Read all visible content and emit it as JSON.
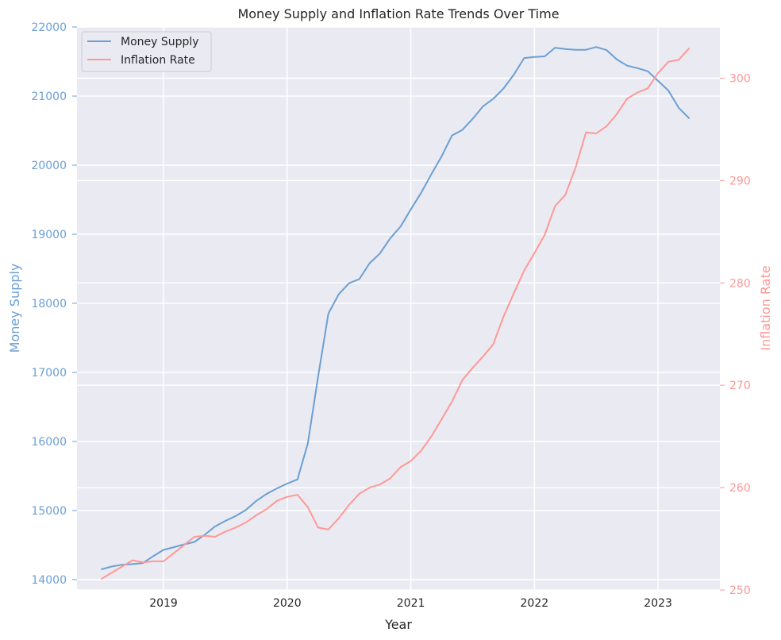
{
  "chart_data": {
    "type": "line",
    "title": "Money Supply and Inflation Rate Trends Over Time",
    "xlabel": "Year",
    "ylabel_left": "Money Supply",
    "ylabel_right": "Inflation Rate",
    "x_ticks": [
      "2019",
      "2020",
      "2021",
      "2022",
      "2023"
    ],
    "y_left_ticks": [
      14000,
      15000,
      16000,
      17000,
      18000,
      19000,
      20000,
      21000,
      22000
    ],
    "y_right_ticks": [
      250,
      260,
      270,
      280,
      290,
      300
    ],
    "xlim": [
      2018.3,
      2023.5
    ],
    "ylim_left": [
      13850,
      22000
    ],
    "ylim_right": [
      250.0,
      305.0
    ],
    "grid": true,
    "legend_position": "top-left",
    "colors": {
      "money_supply": "#6b9fd4",
      "inflation_rate": "#ff9896",
      "plot_background": "#eaeaf2",
      "grid": "#ffffff",
      "text": "#262626"
    },
    "series": [
      {
        "name": "Money Supply",
        "axis": "left",
        "color": "#6b9fd4",
        "points": [
          [
            "2018-07",
            14150
          ],
          [
            "2018-08",
            14190
          ],
          [
            "2018-09",
            14215
          ],
          [
            "2018-10",
            14225
          ],
          [
            "2018-11",
            14240
          ],
          [
            "2018-12",
            14340
          ],
          [
            "2019-01",
            14430
          ],
          [
            "2019-02",
            14470
          ],
          [
            "2019-03",
            14510
          ],
          [
            "2019-04",
            14545
          ],
          [
            "2019-05",
            14650
          ],
          [
            "2019-06",
            14770
          ],
          [
            "2019-07",
            14850
          ],
          [
            "2019-08",
            14920
          ],
          [
            "2019-09",
            15010
          ],
          [
            "2019-10",
            15140
          ],
          [
            "2019-11",
            15240
          ],
          [
            "2019-12",
            15320
          ],
          [
            "2020-01",
            15390
          ],
          [
            "2020-02",
            15450
          ],
          [
            "2020-03",
            15970
          ],
          [
            "2020-04",
            16940
          ],
          [
            "2020-05",
            17850
          ],
          [
            "2020-06",
            18130
          ],
          [
            "2020-07",
            18290
          ],
          [
            "2020-08",
            18350
          ],
          [
            "2020-09",
            18580
          ],
          [
            "2020-10",
            18720
          ],
          [
            "2020-11",
            18940
          ],
          [
            "2020-12",
            19110
          ],
          [
            "2021-01",
            19360
          ],
          [
            "2021-02",
            19600
          ],
          [
            "2021-03",
            19870
          ],
          [
            "2021-04",
            20130
          ],
          [
            "2021-05",
            20430
          ],
          [
            "2021-06",
            20510
          ],
          [
            "2021-07",
            20670
          ],
          [
            "2021-08",
            20850
          ],
          [
            "2021-09",
            20960
          ],
          [
            "2021-10",
            21110
          ],
          [
            "2021-11",
            21310
          ],
          [
            "2021-12",
            21550
          ],
          [
            "2022-01",
            21565
          ],
          [
            "2022-02",
            21575
          ],
          [
            "2022-03",
            21700
          ],
          [
            "2022-04",
            21680
          ],
          [
            "2022-05",
            21670
          ],
          [
            "2022-06",
            21670
          ],
          [
            "2022-07",
            21710
          ],
          [
            "2022-08",
            21665
          ],
          [
            "2022-09",
            21530
          ],
          [
            "2022-10",
            21440
          ],
          [
            "2022-11",
            21405
          ],
          [
            "2022-12",
            21360
          ],
          [
            "2023-01",
            21220
          ],
          [
            "2023-02",
            21080
          ],
          [
            "2023-03",
            20830
          ],
          [
            "2023-04",
            20680
          ]
        ]
      },
      {
        "name": "Inflation Rate",
        "axis": "right",
        "color": "#ff9896",
        "points": [
          [
            "2018-07",
            251.1
          ],
          [
            "2018-08",
            251.7
          ],
          [
            "2018-09",
            252.3
          ],
          [
            "2018-10",
            252.9
          ],
          [
            "2018-11",
            252.7
          ],
          [
            "2018-12",
            252.8
          ],
          [
            "2019-01",
            252.8
          ],
          [
            "2019-02",
            253.6
          ],
          [
            "2019-03",
            254.4
          ],
          [
            "2019-04",
            255.2
          ],
          [
            "2019-05",
            255.3
          ],
          [
            "2019-06",
            255.2
          ],
          [
            "2019-07",
            255.7
          ],
          [
            "2019-08",
            256.1
          ],
          [
            "2019-09",
            256.6
          ],
          [
            "2019-10",
            257.3
          ],
          [
            "2019-11",
            257.9
          ],
          [
            "2019-12",
            258.7
          ],
          [
            "2020-01",
            259.1
          ],
          [
            "2020-02",
            259.3
          ],
          [
            "2020-03",
            258.1
          ],
          [
            "2020-04",
            256.1
          ],
          [
            "2020-05",
            255.9
          ],
          [
            "2020-06",
            257.0
          ],
          [
            "2020-07",
            258.3
          ],
          [
            "2020-08",
            259.4
          ],
          [
            "2020-09",
            260.0
          ],
          [
            "2020-10",
            260.3
          ],
          [
            "2020-11",
            260.9
          ],
          [
            "2020-12",
            262.0
          ],
          [
            "2021-01",
            262.6
          ],
          [
            "2021-02",
            263.6
          ],
          [
            "2021-03",
            265.0
          ],
          [
            "2021-04",
            266.7
          ],
          [
            "2021-05",
            268.4
          ],
          [
            "2021-06",
            270.5
          ],
          [
            "2021-07",
            271.7
          ],
          [
            "2021-08",
            272.8
          ],
          [
            "2021-09",
            274.0
          ],
          [
            "2021-10",
            276.7
          ],
          [
            "2021-11",
            279.0
          ],
          [
            "2021-12",
            281.2
          ],
          [
            "2022-01",
            282.9
          ],
          [
            "2022-02",
            284.7
          ],
          [
            "2022-03",
            287.5
          ],
          [
            "2022-04",
            288.6
          ],
          [
            "2022-05",
            291.3
          ],
          [
            "2022-06",
            294.7
          ],
          [
            "2022-07",
            294.6
          ],
          [
            "2022-08",
            295.3
          ],
          [
            "2022-09",
            296.5
          ],
          [
            "2022-10",
            298.0
          ],
          [
            "2022-11",
            298.6
          ],
          [
            "2022-12",
            299.0
          ],
          [
            "2023-01",
            300.5
          ],
          [
            "2023-02",
            301.6
          ],
          [
            "2023-03",
            301.8
          ],
          [
            "2023-04",
            302.9
          ]
        ]
      }
    ]
  }
}
